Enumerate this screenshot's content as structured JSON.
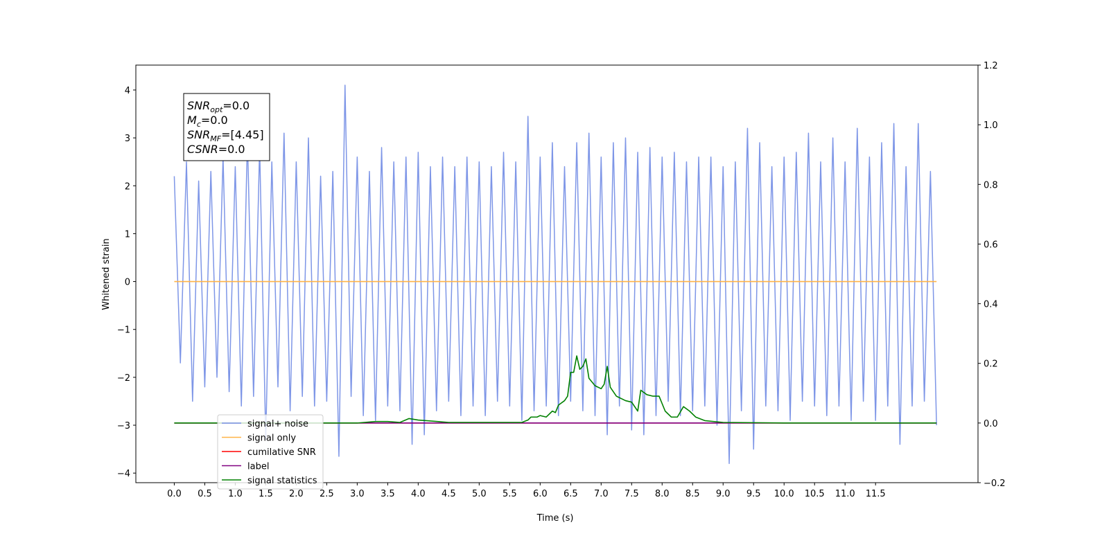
{
  "chart_data": {
    "type": "line",
    "xlabel": "Time (s)",
    "ylabel": "Whitened strain",
    "xlim": [
      -0.63,
      13.18
    ],
    "ylim": [
      -4.2,
      4.52
    ],
    "y2lim": [
      -0.2,
      1.2
    ],
    "xticks": [
      {
        "value": 0,
        "label": "0.0"
      },
      0.5,
      {
        "value": 1,
        "label": "1.0"
      },
      1.5,
      {
        "value": 2,
        "label": "2.0"
      },
      2.5,
      {
        "value": 3,
        "label": "3.0"
      },
      3.5,
      {
        "value": 4,
        "label": "4.0"
      },
      4.5,
      {
        "value": 5,
        "label": "5.0"
      },
      5.5,
      {
        "value": 6,
        "label": "6.0"
      },
      6.5,
      {
        "value": 7,
        "label": "7.0"
      },
      7.5,
      {
        "value": 8,
        "label": "8.0"
      },
      8.5,
      {
        "value": 9,
        "label": "9.0"
      },
      9.5,
      {
        "value": 10,
        "label": "10.0"
      },
      10.5,
      {
        "value": 11,
        "label": "11.0"
      },
      11.5
    ],
    "yticks": [
      {
        "value": -4,
        "label": "−4"
      },
      {
        "value": -3,
        "label": "−3"
      },
      {
        "value": -2,
        "label": "−2"
      },
      {
        "value": -1,
        "label": "−1"
      },
      0,
      1,
      2,
      3,
      4
    ],
    "y2ticks": [
      {
        "value": -0.2,
        "label": "−0.2"
      },
      {
        "value": 0,
        "label": "0.0"
      },
      0.2,
      0.4,
      0.6,
      0.8,
      {
        "value": 1,
        "label": "1.0"
      },
      1.2
    ],
    "series": [
      {
        "name": "signal+ noise",
        "color": "#7790e6",
        "axis": "y",
        "x": [
          0.0,
          0.1,
          0.2,
          0.3,
          0.4,
          0.5,
          0.6,
          0.7,
          0.8,
          0.9,
          1.0,
          1.1,
          1.2,
          1.3,
          1.4,
          1.5,
          1.6,
          1.7,
          1.8,
          1.9,
          2.0,
          2.1,
          2.2,
          2.3,
          2.4,
          2.5,
          2.6,
          2.7,
          2.8,
          2.9,
          3.0,
          3.1,
          3.2,
          3.3,
          3.4,
          3.5,
          3.6,
          3.7,
          3.8,
          3.9,
          4.0,
          4.1,
          4.2,
          4.3,
          4.4,
          4.5,
          4.6,
          4.7,
          4.8,
          4.9,
          5.0,
          5.1,
          5.2,
          5.3,
          5.4,
          5.5,
          5.6,
          5.7,
          5.8,
          5.9,
          6.0,
          6.1,
          6.2,
          6.3,
          6.4,
          6.5,
          6.6,
          6.7,
          6.8,
          6.9,
          7.0,
          7.1,
          7.2,
          7.3,
          7.4,
          7.5,
          7.6,
          7.7,
          7.8,
          7.9,
          8.0,
          8.1,
          8.2,
          8.3,
          8.4,
          8.5,
          8.6,
          8.7,
          8.8,
          8.9,
          9.0,
          9.1,
          9.2,
          9.3,
          9.4,
          9.5,
          9.6,
          9.7,
          9.8,
          9.9,
          10.0,
          10.1,
          10.2,
          10.3,
          10.4,
          10.5,
          10.6,
          10.7,
          10.8,
          10.9,
          11.0,
          11.1,
          11.2,
          11.3,
          11.4,
          11.5,
          11.6,
          11.7,
          11.8,
          11.9,
          12.0,
          12.1,
          12.2,
          12.3,
          12.4,
          12.5
        ],
        "values": [
          2.2,
          -1.7,
          2.5,
          -2.5,
          2.1,
          -2.2,
          2.3,
          -2.0,
          2.6,
          -2.3,
          2.4,
          -2.6,
          3.0,
          -2.4,
          2.8,
          -3.3,
          2.5,
          -2.2,
          3.1,
          -2.7,
          2.5,
          -2.4,
          3.0,
          -2.6,
          2.2,
          -2.5,
          2.3,
          -3.65,
          4.1,
          -2.4,
          2.6,
          -2.8,
          2.3,
          -2.9,
          2.8,
          -2.6,
          2.5,
          -2.7,
          2.6,
          -3.4,
          2.7,
          -3.2,
          2.4,
          -2.7,
          2.6,
          -2.5,
          2.4,
          -2.8,
          2.6,
          -2.6,
          2.5,
          -2.8,
          2.4,
          -2.5,
          2.7,
          -2.6,
          2.5,
          -2.9,
          3.45,
          -2.7,
          2.6,
          -2.6,
          2.9,
          -2.8,
          2.4,
          -2.5,
          2.9,
          -2.7,
          3.1,
          -2.8,
          2.6,
          -3.2,
          2.9,
          -2.6,
          3.0,
          -3.1,
          2.7,
          -3.2,
          2.8,
          -2.8,
          2.6,
          -2.5,
          2.7,
          -2.8,
          2.5,
          -2.7,
          2.6,
          -2.6,
          2.6,
          -3.0,
          2.4,
          -3.8,
          2.5,
          -2.7,
          3.2,
          -3.5,
          2.9,
          -2.6,
          2.4,
          -2.7,
          2.6,
          -2.9,
          2.7,
          -2.5,
          3.1,
          -2.6,
          2.5,
          -2.8,
          3.0,
          -2.6,
          2.5,
          -2.9,
          3.2,
          -2.5,
          2.6,
          -2.9,
          2.9,
          -2.6,
          3.3,
          -3.4,
          2.4,
          -2.6,
          3.3,
          -2.5,
          2.3,
          -3.0
        ]
      },
      {
        "name": "signal only",
        "color": "#ffb347",
        "axis": "y",
        "x": [
          0.0,
          12.5
        ],
        "values": [
          0,
          0
        ]
      },
      {
        "name": "cumilative SNR",
        "color": "#ff0000",
        "axis": "y2",
        "x": [
          0.0,
          12.5
        ],
        "values": [
          0,
          0
        ]
      },
      {
        "name": "label",
        "color": "#800080",
        "axis": "y2",
        "x": [
          0.0,
          12.5
        ],
        "values": [
          0,
          0
        ]
      },
      {
        "name": "signal statistics",
        "color": "#008000",
        "axis": "y2",
        "x": [
          0.0,
          3.0,
          3.3,
          3.5,
          3.7,
          3.85,
          4.0,
          4.5,
          5.0,
          5.5,
          5.7,
          5.8,
          5.85,
          5.95,
          6.0,
          6.1,
          6.2,
          6.25,
          6.3,
          6.4,
          6.45,
          6.5,
          6.55,
          6.6,
          6.65,
          6.7,
          6.75,
          6.8,
          6.9,
          7.0,
          7.05,
          7.1,
          7.15,
          7.25,
          7.4,
          7.5,
          7.6,
          7.65,
          7.75,
          7.85,
          7.95,
          8.05,
          8.15,
          8.25,
          8.35,
          8.45,
          8.55,
          8.7,
          9.0,
          10.0,
          12.5
        ],
        "values": [
          0,
          0,
          0.005,
          0.005,
          0.002,
          0.015,
          0.01,
          0.002,
          0.002,
          0.002,
          0.002,
          0.01,
          0.02,
          0.02,
          0.025,
          0.02,
          0.04,
          0.035,
          0.06,
          0.075,
          0.09,
          0.17,
          0.17,
          0.225,
          0.18,
          0.19,
          0.215,
          0.15,
          0.125,
          0.115,
          0.13,
          0.19,
          0.12,
          0.09,
          0.075,
          0.07,
          0.04,
          0.11,
          0.095,
          0.09,
          0.09,
          0.04,
          0.02,
          0.02,
          0.055,
          0.04,
          0.02,
          0.008,
          0.002,
          0,
          0
        ]
      }
    ],
    "textbox": [
      {
        "name": "SNR",
        "sub": "opt",
        "text": "=0.0"
      },
      {
        "name": "M",
        "sub": "c",
        "text": "=0.0"
      },
      {
        "name": "SNR",
        "sub": "MF",
        "text": "=[4.45]"
      },
      {
        "name": "CSNR",
        "text": "=0.0"
      }
    ]
  }
}
